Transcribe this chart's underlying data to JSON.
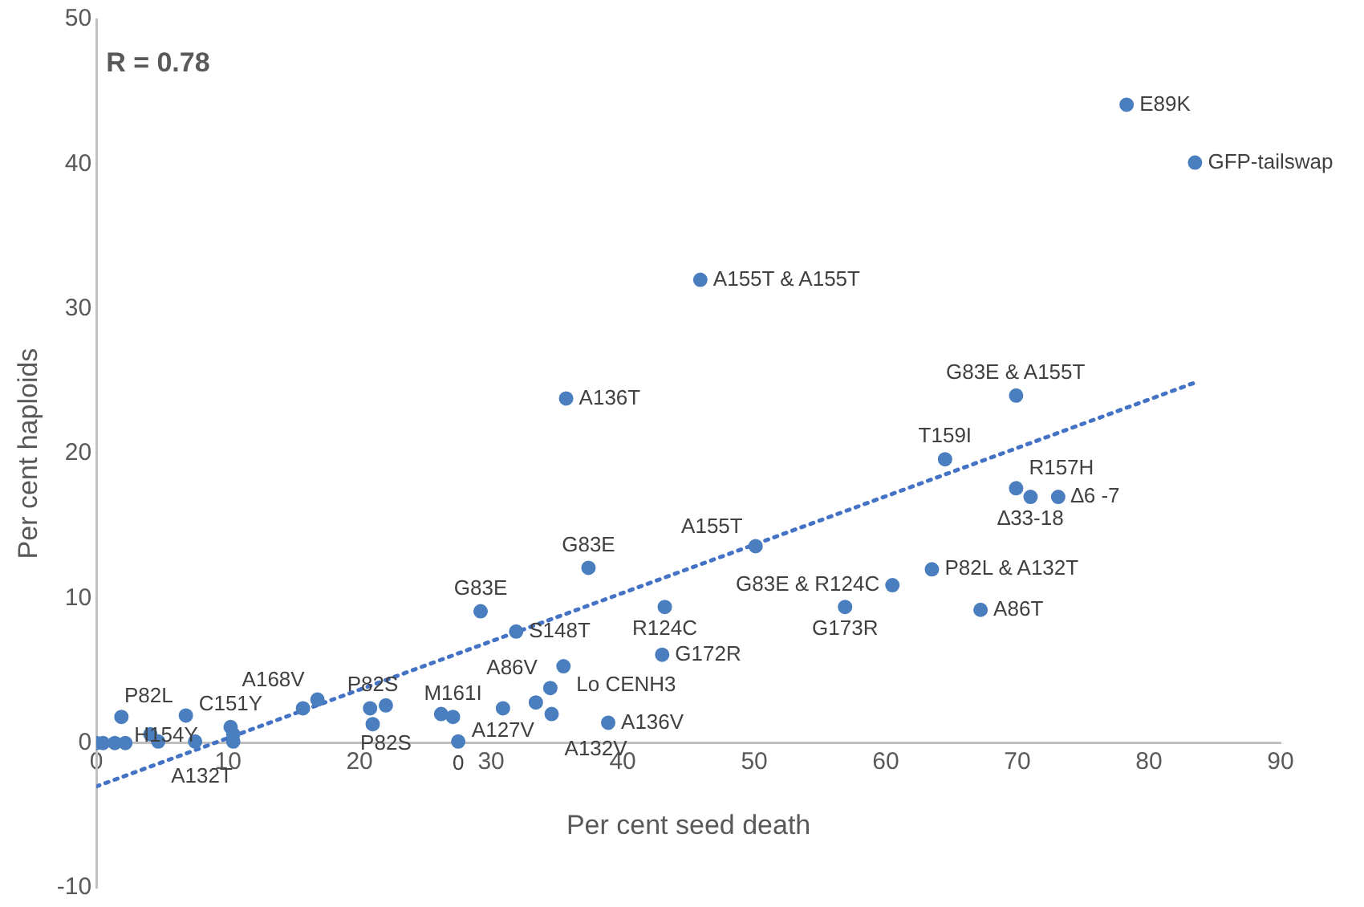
{
  "chart_data": {
    "type": "scatter",
    "xlabel": "Per cent seed death",
    "ylabel": "Per cent haploids",
    "xlim": [
      0,
      90
    ],
    "xticks": [
      0,
      10,
      20,
      30,
      40,
      50,
      60,
      70,
      80,
      90
    ],
    "ylim": [
      -10,
      50
    ],
    "yticks": [
      -10,
      0,
      10,
      20,
      30,
      40,
      50
    ],
    "grid": false,
    "legend": false,
    "marker": "circle",
    "series": [
      {
        "type": "scatter",
        "color": "#4a7ebf",
        "x": [
          0,
          0.5,
          1.4,
          2.2,
          1.9,
          6.8,
          4.1,
          4.7,
          7.5,
          10.2,
          10.4,
          10.4,
          15.7,
          16.8,
          21.0,
          20.8,
          22.0,
          26.2,
          27.1,
          27.5,
          37.4,
          50.1,
          63.5,
          60.5,
          56.9,
          67.2,
          43.2,
          29.2,
          31.9,
          43.0,
          35.5,
          34.5,
          30.9,
          33.4,
          34.6,
          38.9,
          45.9,
          35.7,
          69.9,
          64.5,
          69.9,
          71.0,
          73.1,
          78.3,
          83.5
        ],
        "values": [
          0,
          0,
          0,
          0,
          1.8,
          1.9,
          0.6,
          0.1,
          0.1,
          1.1,
          0.6,
          0.1,
          2.4,
          3.0,
          1.3,
          2.4,
          2.6,
          2.0,
          1.8,
          0.1,
          12.1,
          13.6,
          12.0,
          10.9,
          9.4,
          9.2,
          9.4,
          9.1,
          7.7,
          6.1,
          5.3,
          3.8,
          2.4,
          2.8,
          2.0,
          1.4,
          32.0,
          23.8,
          24.0,
          19.6,
          17.6,
          17.0,
          17.0,
          44.1,
          40.1
        ]
      },
      {
        "type": "line",
        "color": "#4472c4",
        "line_style": "dotted",
        "marker": "none",
        "x": [
          0,
          83.5
        ],
        "values": [
          -3.0,
          24.9
        ]
      }
    ],
    "annotations": [
      "R = 0.78",
      {
        "text": "E89K",
        "x": 78.3,
        "y": 44.1
      },
      {
        "text": "GFP-tailswap",
        "x": 83.5,
        "y": 40.1
      },
      {
        "text": "A155T & A155T",
        "x": 45.9,
        "y": 32.0
      },
      {
        "text": "A136T",
        "x": 35.7,
        "y": 23.8
      },
      {
        "text": "G83E & A155T",
        "x": 69.9,
        "y": 24.0
      },
      {
        "text": "T159I",
        "x": 64.5,
        "y": 19.6
      },
      {
        "text": "R157H",
        "x": 69.9,
        "y": 17.6
      },
      {
        "text": "∆6 -7",
        "x": 73.1,
        "y": 17.0
      },
      {
        "text": "∆33-18",
        "x": 71.0,
        "y": 17.0
      },
      {
        "text": "P82L & A132T",
        "x": 63.5,
        "y": 12.0
      },
      {
        "text": "G83E & R124C",
        "x": 60.5,
        "y": 10.9
      },
      {
        "text": "G173R",
        "x": 56.9,
        "y": 9.4
      },
      {
        "text": "A86T",
        "x": 67.2,
        "y": 9.2
      },
      {
        "text": "A155T",
        "x": 50.1,
        "y": 13.6
      },
      {
        "text": "G83E",
        "x": 37.4,
        "y": 12.1
      },
      {
        "text": "R124C",
        "x": 43.2,
        "y": 9.4
      },
      {
        "text": "G83E",
        "x": 29.2,
        "y": 9.1
      },
      {
        "text": "S148T",
        "x": 31.9,
        "y": 7.7
      },
      {
        "text": "G172R",
        "x": 43.0,
        "y": 6.1
      },
      {
        "text": "Lo CENH3",
        "x": 35.5,
        "y": 5.3
      },
      {
        "text": "A86V",
        "x": 34.5,
        "y": 3.8
      },
      {
        "text": "A127V",
        "x": 30.9,
        "y": 2.4
      },
      {
        "text": "A132V",
        "x": 34.6,
        "y": 2.0
      },
      {
        "text": "A136V",
        "x": 38.9,
        "y": 1.4
      },
      {
        "text": "0",
        "x": 27.5,
        "y": 0.1
      },
      {
        "text": "M161I",
        "x": 27.1,
        "y": 1.8
      },
      {
        "text": "P82S",
        "x": 22.0,
        "y": 2.6
      },
      {
        "text": "P82S",
        "x": 21.0,
        "y": 1.3
      },
      {
        "text": "A168V",
        "x": 16.8,
        "y": 3.0
      },
      {
        "text": "C151Y",
        "x": 10.2,
        "y": 1.1
      },
      {
        "text": "A132T",
        "x": 4.7,
        "y": 0.1
      },
      {
        "text": "P82L",
        "x": 6.8,
        "y": 1.9
      },
      {
        "text": "H154Y",
        "x": 1.9,
        "y": 1.8
      }
    ]
  }
}
